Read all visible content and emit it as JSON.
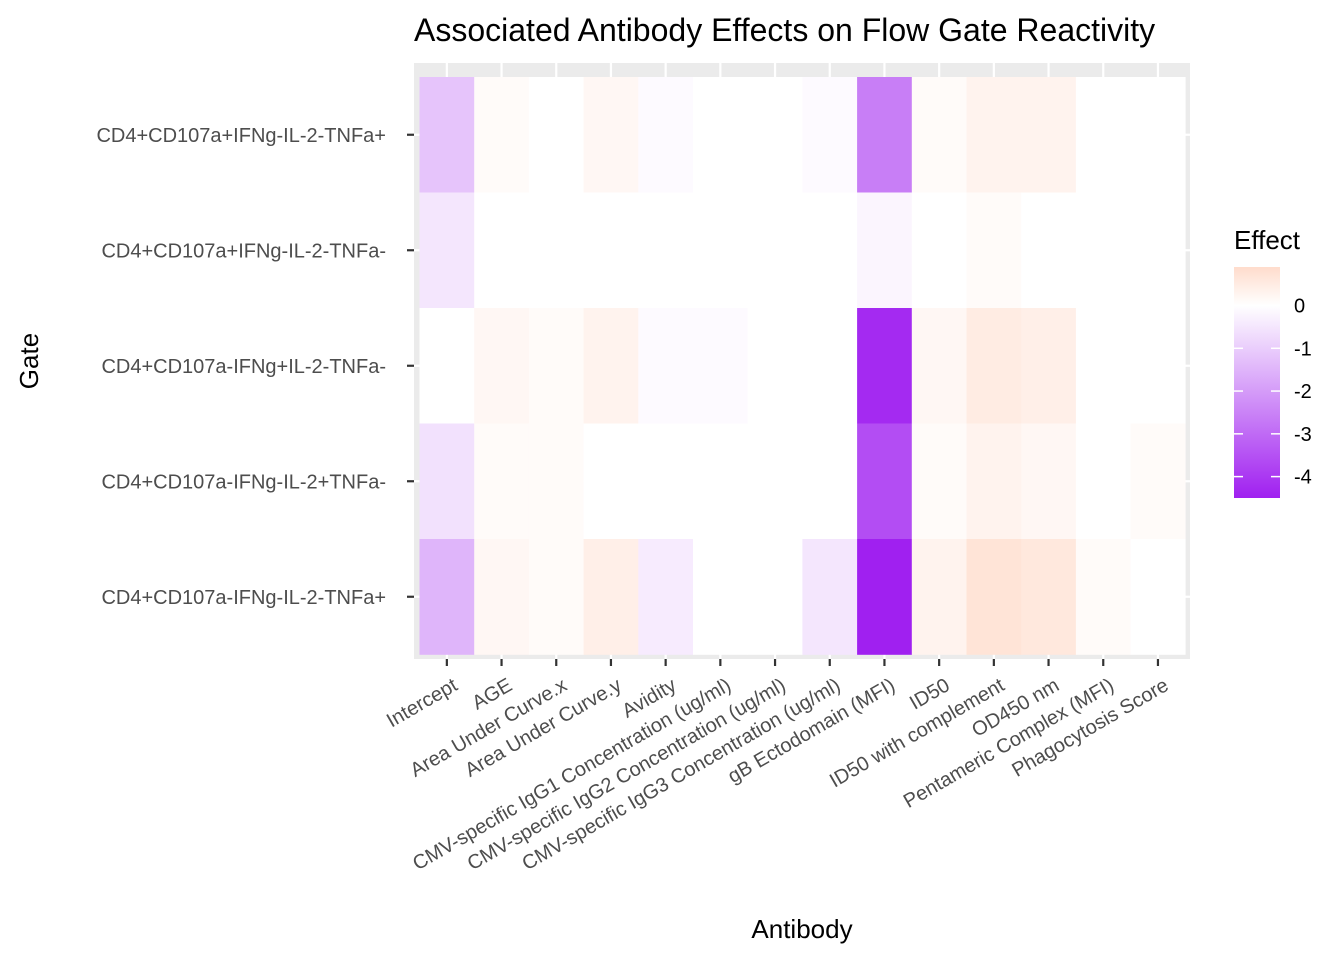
{
  "chart_data": {
    "type": "heatmap",
    "title": "Associated Antibody Effects on Flow Gate Reactivity",
    "xlabel": "Antibody",
    "ylabel": "Gate",
    "legend": {
      "title": "Effect",
      "ticks": [
        0,
        -1,
        -2,
        -3,
        -4
      ],
      "range": [
        -4.5,
        0.9
      ],
      "low_color": "#a020f0",
      "mid_color": "#ffffff",
      "high_color": "#ffdccc",
      "placement": "right"
    },
    "x_categories": [
      "Intercept",
      "AGE",
      "Area Under Curve.x",
      "Area Under Curve.y",
      "Avidity",
      "CMV-specific IgG1 Concentration (ug/ml)",
      "CMV-specific IgG2 Concentration (ug/ml)",
      "CMV-specific IgG3 Concentration (ug/ml)",
      "gB Ectodomain (MFI)",
      "ID50",
      "ID50 with complement",
      "OD450 nm",
      "Pentameric Complex (MFI)",
      "Phagocytosis Score"
    ],
    "y_categories": [
      "CD4+CD107a+IFNg-IL-2-TNFa+",
      "CD4+CD107a+IFNg-IL-2-TNFa-",
      "CD4+CD107a-IFNg+IL-2-TNFa-",
      "CD4+CD107a-IFNg-IL-2+TNFa-",
      "CD4+CD107a-IFNg-IL-2-TNFa+"
    ],
    "values": [
      [
        -1.2,
        0.1,
        0.0,
        0.2,
        -0.1,
        0.0,
        0.0,
        -0.1,
        -2.6,
        0.1,
        0.3,
        0.3,
        0.0,
        0.0
      ],
      [
        -0.5,
        0.0,
        0.0,
        0.0,
        0.0,
        0.0,
        0.0,
        0.0,
        -0.2,
        0.0,
        0.1,
        0.0,
        0.0,
        0.0
      ],
      [
        0.0,
        0.2,
        0.1,
        0.3,
        -0.1,
        -0.1,
        0.0,
        0.0,
        -4.3,
        0.2,
        0.5,
        0.4,
        0.0,
        0.0
      ],
      [
        -0.6,
        0.1,
        0.1,
        0.0,
        0.0,
        0.0,
        0.0,
        0.0,
        -3.6,
        0.1,
        0.3,
        0.2,
        0.0,
        0.1
      ],
      [
        -1.5,
        0.2,
        0.1,
        0.4,
        -0.4,
        0.0,
        0.0,
        -0.5,
        -4.5,
        0.3,
        0.7,
        0.6,
        0.1,
        0.0
      ]
    ],
    "grid": true
  }
}
